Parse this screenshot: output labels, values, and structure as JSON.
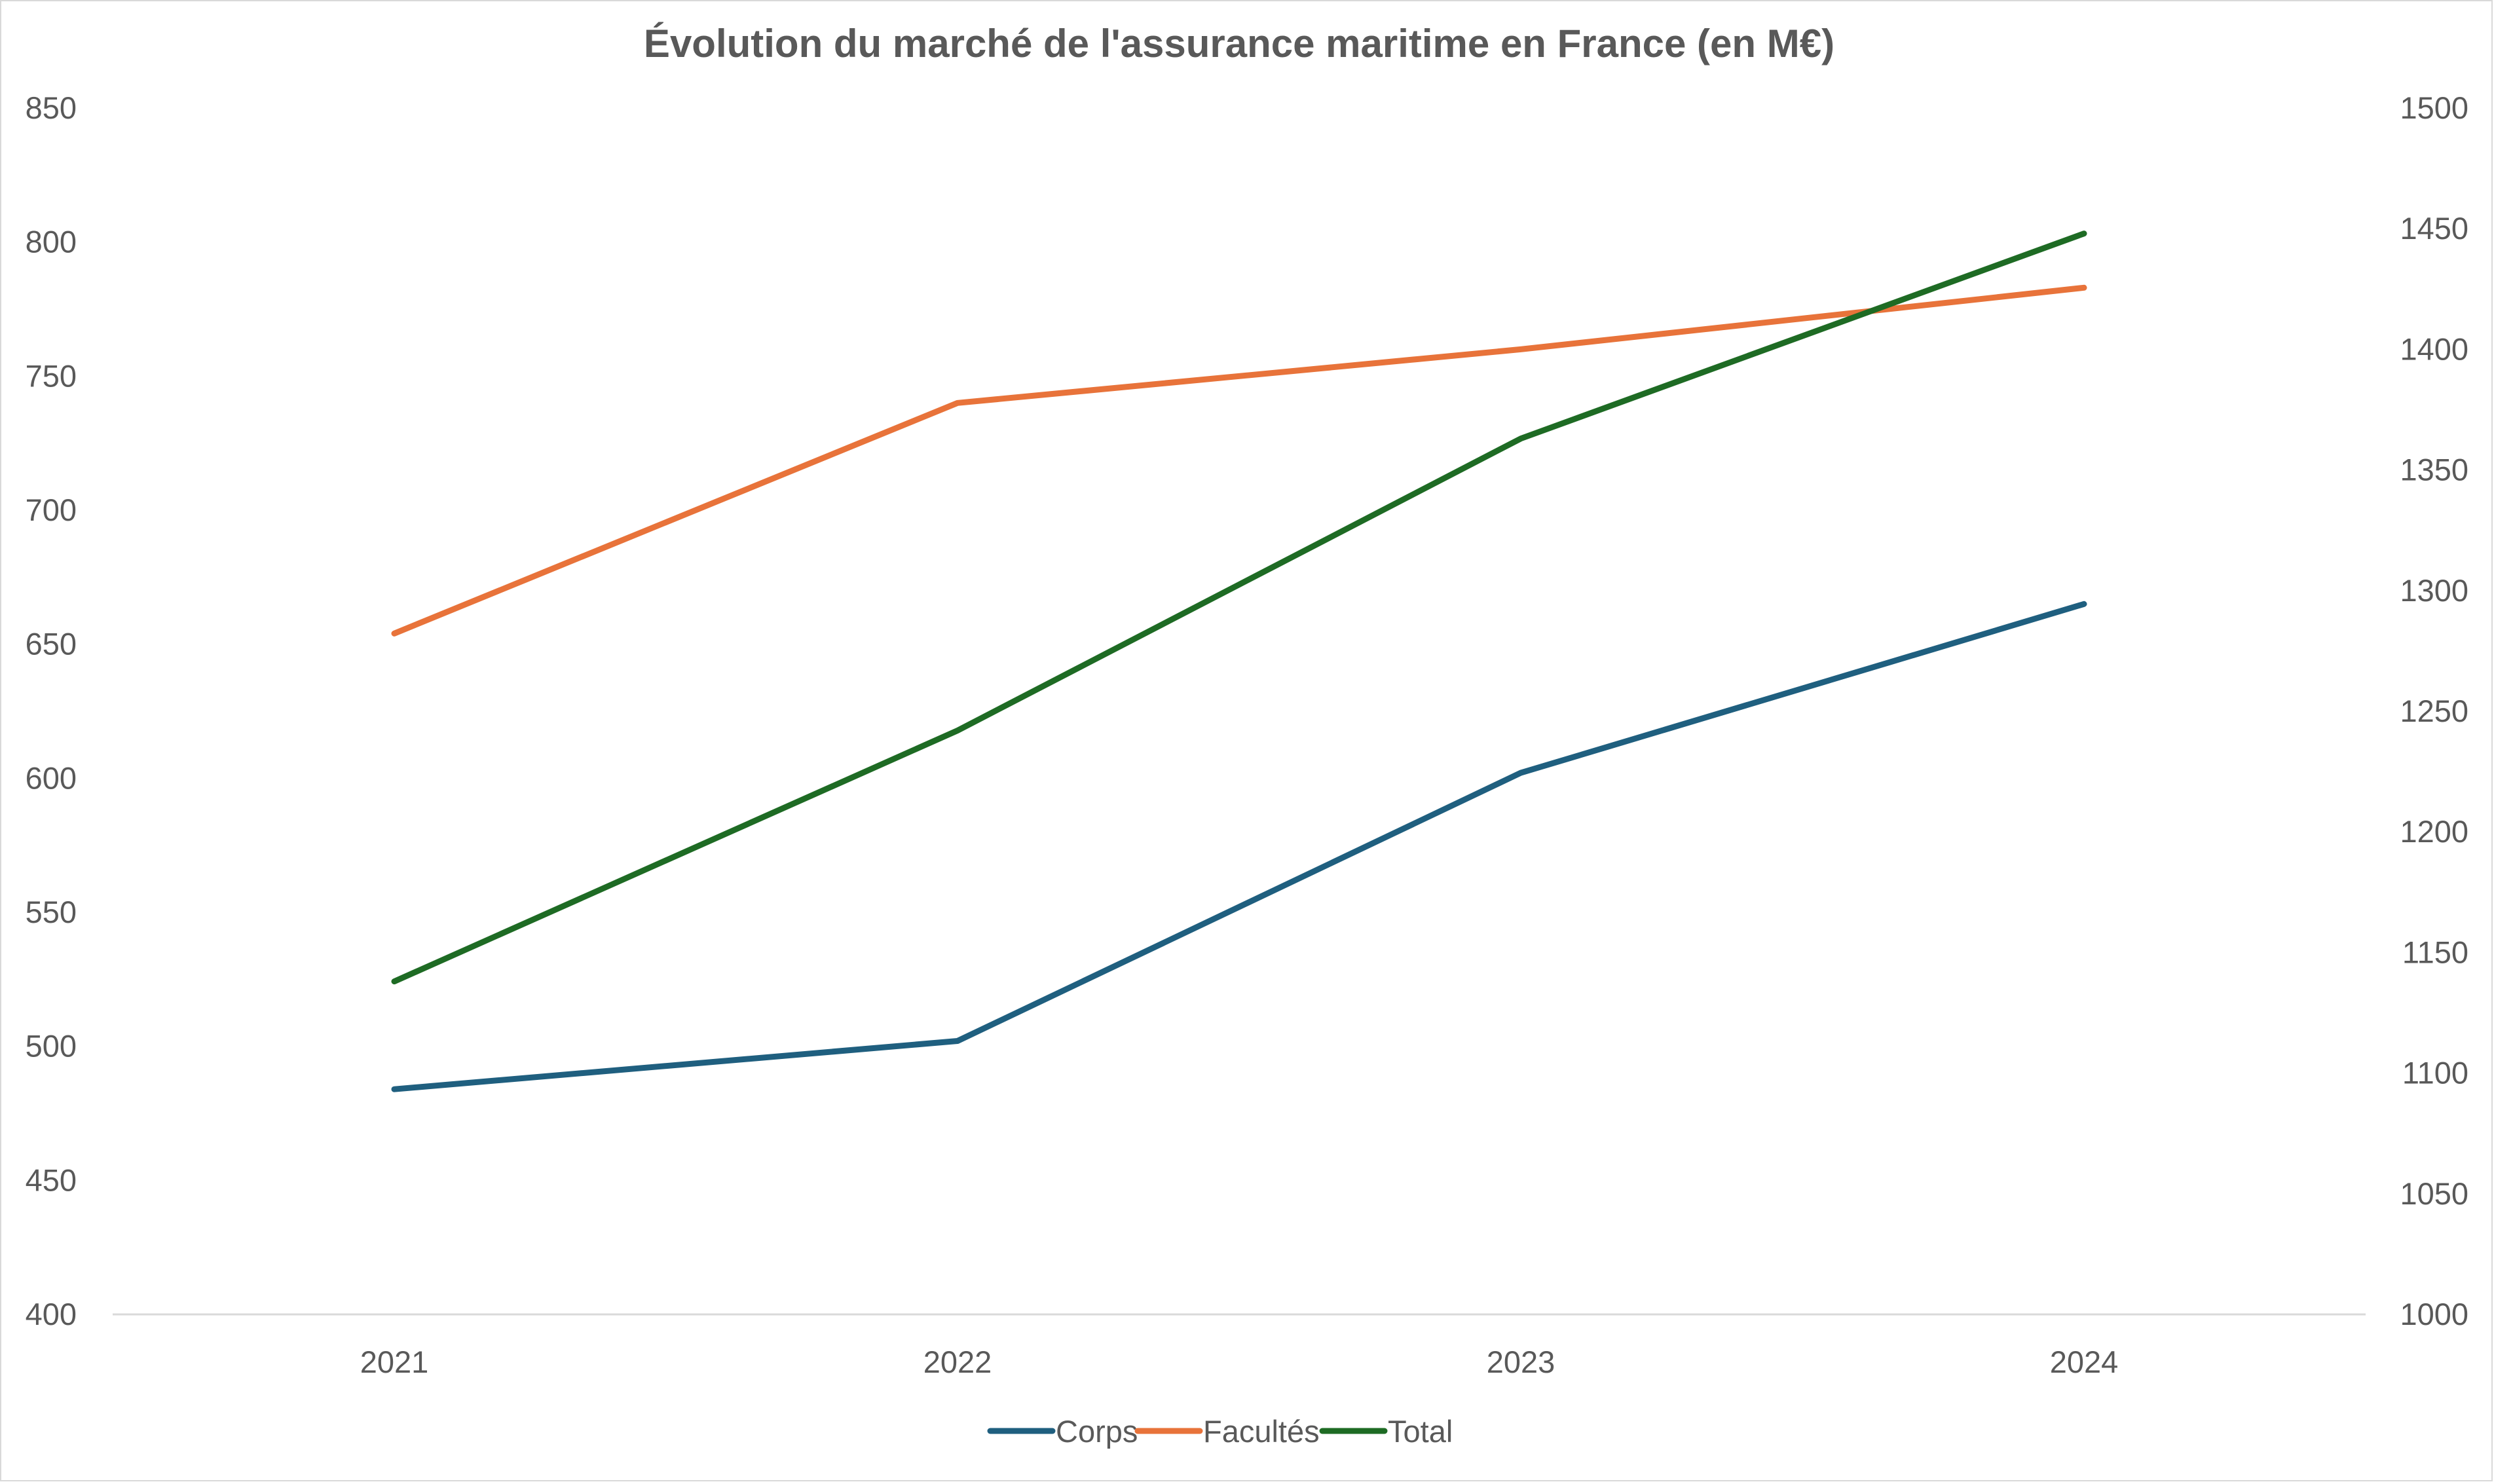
{
  "chart_data": {
    "type": "line",
    "title": "Évolution du marché de l'assurance maritime en France (en M€)",
    "xlabel": "",
    "ylabel": "",
    "y2label": "",
    "categories": [
      "2021",
      "2022",
      "2023",
      "2024"
    ],
    "ylim": [
      400,
      850
    ],
    "y2lim": [
      1000,
      1500
    ],
    "yticks": [
      "400",
      "450",
      "500",
      "550",
      "600",
      "650",
      "700",
      "750",
      "800",
      "850"
    ],
    "y2ticks": [
      "1000",
      "1050",
      "1100",
      "1150",
      "1200",
      "1250",
      "1300",
      "1350",
      "1400",
      "1450",
      "1500"
    ],
    "grid": false,
    "legend": "bottom",
    "series": [
      {
        "name": "Corps",
        "axis": "primary",
        "color": "#1f5f7f",
        "values": [
          484,
          502,
          602,
          665
        ]
      },
      {
        "name": "Facultés",
        "axis": "primary",
        "color": "#e8733a",
        "values": [
          654,
          740,
          760,
          783
        ]
      },
      {
        "name": "Total",
        "axis": "secondary",
        "color": "#1e6b24",
        "values": [
          1138,
          1242,
          1363,
          1448
        ]
      }
    ]
  }
}
